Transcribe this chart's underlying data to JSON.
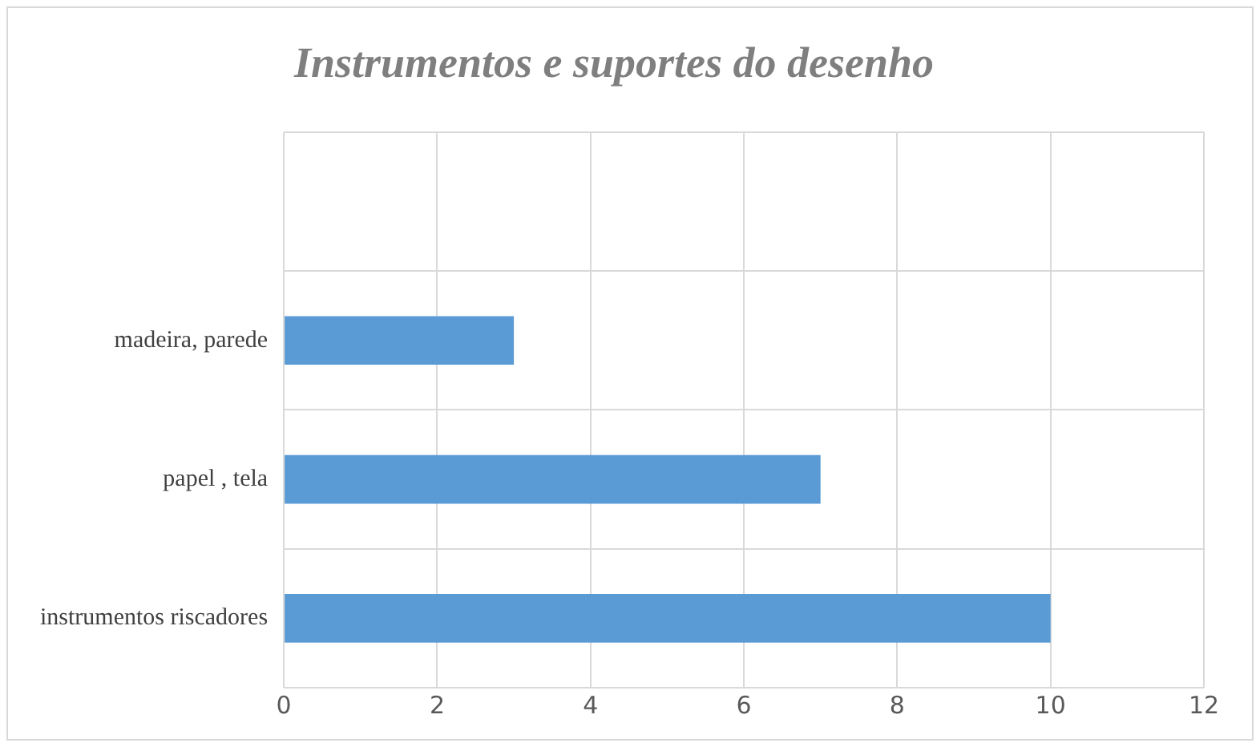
{
  "chart_data": {
    "type": "bar",
    "orientation": "horizontal",
    "title": "Instrumentos e suportes do desenho",
    "categories": [
      null,
      "madeira, parede",
      "papel , tela",
      "instrumentos riscadores"
    ],
    "values": [
      null,
      3,
      7,
      10
    ],
    "color": "#5b9bd5",
    "xlim": [
      0,
      12
    ],
    "xticks": [
      0,
      2,
      4,
      6,
      8,
      10,
      12
    ],
    "grid": true
  }
}
